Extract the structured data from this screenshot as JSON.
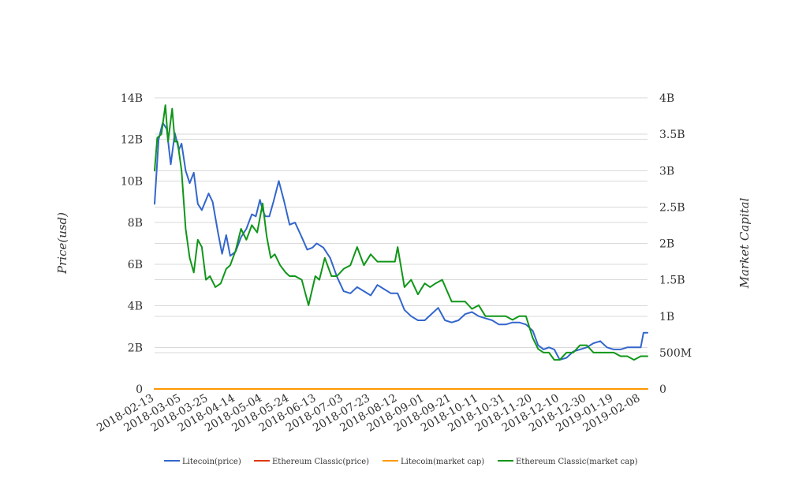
{
  "chart_data": {
    "type": "line",
    "title": "",
    "xlabel": "",
    "ylabel_left": "Price(usd)",
    "ylabel_right": "Market Capital",
    "x_tick_labels": [
      "2018-02-13",
      "2018-03-05",
      "2018-03-25",
      "2018-04-14",
      "2018-05-04",
      "2018-05-24",
      "2018-06-13",
      "2018-07-03",
      "2018-07-23",
      "2018-08-12",
      "2018-09-01",
      "2018-09-21",
      "2018-10-11",
      "2018-10-31",
      "2018-11-20",
      "2018-12-10",
      "2018-12-30",
      "2019-01-19",
      "2019-02-08"
    ],
    "x_range": [
      "2018-02-13",
      "2019-02-13"
    ],
    "y_left": {
      "min": 0,
      "max": 14000000000,
      "ticks": [
        0,
        2000000000,
        4000000000,
        6000000000,
        8000000000,
        10000000000,
        12000000000,
        14000000000
      ],
      "tick_labels": [
        "0",
        "2B",
        "4B",
        "6B",
        "8B",
        "10B",
        "12B",
        "14B"
      ]
    },
    "y_right": {
      "min": 0,
      "max": 4000000000,
      "ticks": [
        0,
        500000000,
        1000000000,
        1500000000,
        2000000000,
        2500000000,
        3000000000,
        3500000000,
        4000000000
      ],
      "tick_labels": [
        "0",
        "500M",
        "1B",
        "1.5B",
        "2B",
        "2.5B",
        "3B",
        "3.5B",
        "4B"
      ]
    },
    "grid": true,
    "legend_position": "bottom",
    "series": [
      {
        "name": "Litecoin(price)",
        "axis": "left",
        "color": "#3366cc",
        "x": [
          "2018-02-13",
          "2018-02-16",
          "2018-02-19",
          "2018-02-22",
          "2018-02-25",
          "2018-02-28",
          "2018-03-03",
          "2018-03-05",
          "2018-03-08",
          "2018-03-11",
          "2018-03-14",
          "2018-03-17",
          "2018-03-20",
          "2018-03-25",
          "2018-03-28",
          "2018-04-01",
          "2018-04-04",
          "2018-04-07",
          "2018-04-10",
          "2018-04-14",
          "2018-04-18",
          "2018-04-22",
          "2018-04-26",
          "2018-04-29",
          "2018-05-02",
          "2018-05-04",
          "2018-05-06",
          "2018-05-09",
          "2018-05-12",
          "2018-05-16",
          "2018-05-20",
          "2018-05-24",
          "2018-05-28",
          "2018-06-02",
          "2018-06-06",
          "2018-06-10",
          "2018-06-13",
          "2018-06-18",
          "2018-06-23",
          "2018-06-28",
          "2018-07-03",
          "2018-07-08",
          "2018-07-13",
          "2018-07-18",
          "2018-07-23",
          "2018-07-28",
          "2018-08-02",
          "2018-08-07",
          "2018-08-12",
          "2018-08-17",
          "2018-08-22",
          "2018-08-27",
          "2018-09-01",
          "2018-09-06",
          "2018-09-11",
          "2018-09-16",
          "2018-09-21",
          "2018-09-26",
          "2018-10-01",
          "2018-10-06",
          "2018-10-11",
          "2018-10-16",
          "2018-10-21",
          "2018-10-26",
          "2018-10-31",
          "2018-11-05",
          "2018-11-10",
          "2018-11-15",
          "2018-11-20",
          "2018-11-24",
          "2018-11-28",
          "2018-12-02",
          "2018-12-06",
          "2018-12-10",
          "2018-12-15",
          "2018-12-20",
          "2018-12-25",
          "2018-12-30",
          "2019-01-04",
          "2019-01-09",
          "2019-01-14",
          "2019-01-19",
          "2019-01-24",
          "2019-01-29",
          "2019-02-03",
          "2019-02-08",
          "2019-02-10",
          "2019-02-13"
        ],
        "values": [
          8900000000.0,
          12000000000.0,
          12800000000.0,
          12500000000.0,
          10800000000.0,
          12300000000.0,
          11500000000.0,
          11800000000.0,
          10500000000.0,
          9900000000.0,
          10400000000.0,
          8900000000.0,
          8600000000.0,
          9400000000.0,
          9000000000.0,
          7500000000.0,
          6500000000.0,
          7400000000.0,
          6400000000.0,
          6600000000.0,
          7300000000.0,
          7700000000.0,
          8400000000.0,
          8300000000.0,
          9100000000.0,
          8600000000.0,
          8300000000.0,
          8300000000.0,
          9000000000.0,
          10000000000.0,
          9000000000.0,
          7900000000.0,
          8000000000.0,
          7300000000.0,
          6700000000.0,
          6800000000.0,
          7000000000.0,
          6800000000.0,
          6300000000.0,
          5400000000.0,
          4700000000.0,
          4600000000.0,
          4900000000.0,
          4700000000.0,
          4500000000.0,
          5000000000.0,
          4800000000.0,
          4600000000.0,
          4600000000.0,
          3800000000.0,
          3500000000.0,
          3300000000.0,
          3300000000.0,
          3600000000.0,
          3900000000.0,
          3300000000.0,
          3200000000.0,
          3300000000.0,
          3600000000.0,
          3700000000.0,
          3500000000.0,
          3400000000.0,
          3300000000.0,
          3100000000.0,
          3100000000.0,
          3200000000.0,
          3200000000.0,
          3100000000.0,
          2800000000.0,
          2100000000.0,
          1900000000.0,
          2000000000.0,
          1900000000.0,
          1400000000.0,
          1500000000.0,
          1800000000.0,
          1900000000.0,
          2000000000.0,
          2200000000.0,
          2300000000.0,
          2000000000.0,
          1900000000.0,
          1900000000.0,
          2000000000.0,
          2000000000.0,
          2000000000.0,
          2700000000.0,
          2700000000.0
        ]
      },
      {
        "name": "Ethereum Classic(price)",
        "axis": "left",
        "color": "#dc3912",
        "x": [
          "2018-02-13",
          "2019-02-13"
        ],
        "values": [
          8,
          8
        ]
      },
      {
        "name": "Litecoin(market cap)",
        "axis": "right",
        "color": "#ff9900",
        "x": [
          "2018-02-13",
          "2019-02-13"
        ],
        "values": [
          0,
          0
        ]
      },
      {
        "name": "Ethereum Classic(market cap)",
        "axis": "right",
        "color": "#109618",
        "x": [
          "2018-02-13",
          "2018-02-15",
          "2018-02-18",
          "2018-02-21",
          "2018-02-23",
          "2018-02-26",
          "2018-02-28",
          "2018-03-02",
          "2018-03-05",
          "2018-03-08",
          "2018-03-11",
          "2018-03-14",
          "2018-03-17",
          "2018-03-20",
          "2018-03-23",
          "2018-03-26",
          "2018-03-30",
          "2018-04-03",
          "2018-04-07",
          "2018-04-10",
          "2018-04-14",
          "2018-04-18",
          "2018-04-22",
          "2018-04-26",
          "2018-04-30",
          "2018-05-04",
          "2018-05-07",
          "2018-05-10",
          "2018-05-13",
          "2018-05-17",
          "2018-05-21",
          "2018-05-24",
          "2018-05-28",
          "2018-06-02",
          "2018-06-07",
          "2018-06-12",
          "2018-06-15",
          "2018-06-19",
          "2018-06-24",
          "2018-06-28",
          "2018-07-03",
          "2018-07-08",
          "2018-07-13",
          "2018-07-18",
          "2018-07-23",
          "2018-07-28",
          "2018-08-02",
          "2018-08-06",
          "2018-08-10",
          "2018-08-12",
          "2018-08-17",
          "2018-08-22",
          "2018-08-27",
          "2018-09-01",
          "2018-09-05",
          "2018-09-09",
          "2018-09-14",
          "2018-09-21",
          "2018-09-26",
          "2018-10-01",
          "2018-10-06",
          "2018-10-11",
          "2018-10-16",
          "2018-10-21",
          "2018-10-26",
          "2018-10-31",
          "2018-11-05",
          "2018-11-10",
          "2018-11-15",
          "2018-11-20",
          "2018-11-24",
          "2018-11-28",
          "2018-12-02",
          "2018-12-06",
          "2018-12-10",
          "2018-12-15",
          "2018-12-20",
          "2018-12-25",
          "2018-12-30",
          "2019-01-04",
          "2019-01-09",
          "2019-01-14",
          "2019-01-19",
          "2019-01-24",
          "2019-01-29",
          "2019-02-03",
          "2019-02-08",
          "2019-02-13"
        ],
        "values": [
          3000000000.0,
          3450000000.0,
          3500000000.0,
          3900000000.0,
          3400000000.0,
          3850000000.0,
          3400000000.0,
          3400000000.0,
          3000000000.0,
          2200000000.0,
          1800000000.0,
          1600000000.0,
          2050000000.0,
          1950000000.0,
          1500000000.0,
          1550000000.0,
          1400000000.0,
          1450000000.0,
          1650000000.0,
          1700000000.0,
          1900000000.0,
          2200000000.0,
          2050000000.0,
          2250000000.0,
          2150000000.0,
          2550000000.0,
          2100000000.0,
          1800000000.0,
          1850000000.0,
          1700000000.0,
          1600000000.0,
          1550000000.0,
          1550000000.0,
          1500000000.0,
          1150000000.0,
          1550000000.0,
          1500000000.0,
          1800000000.0,
          1550000000.0,
          1550000000.0,
          1650000000.0,
          1700000000.0,
          1950000000.0,
          1700000000.0,
          1850000000.0,
          1750000000.0,
          1750000000.0,
          1750000000.0,
          1750000000.0,
          1950000000.0,
          1400000000.0,
          1500000000.0,
          1300000000.0,
          1450000000.0,
          1400000000.0,
          1450000000.0,
          1500000000.0,
          1200000000.0,
          1200000000.0,
          1200000000.0,
          1100000000.0,
          1150000000.0,
          1000000000.0,
          1000000000.0,
          1000000000.0,
          1000000000.0,
          950000000.0,
          1000000000.0,
          1000000000.0,
          700000000.0,
          550000000.0,
          500000000.0,
          500000000.0,
          400000000.0,
          400000000.0,
          500000000.0,
          500000000.0,
          600000000.0,
          600000000.0,
          500000000.0,
          500000000.0,
          500000000.0,
          500000000.0,
          450000000.0,
          450000000.0,
          400000000.0,
          450000000.0,
          450000000.0
        ]
      }
    ]
  }
}
